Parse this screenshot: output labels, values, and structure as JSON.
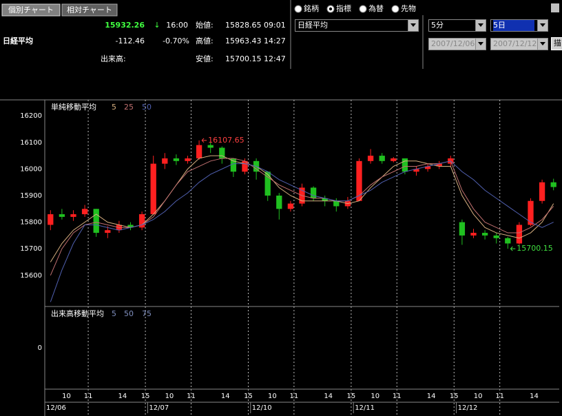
{
  "toolbar": {
    "tabs": [
      "個別チャート",
      "相対チャート"
    ],
    "radio_options": [
      "銘柄",
      "指標",
      "為替",
      "先物"
    ],
    "selected_index": 1
  },
  "quote": {
    "name": "日経平均",
    "price": "15932.26",
    "arrow": "↓",
    "time": "16:00",
    "change": "-112.46",
    "change_pct": "-0.70%",
    "volume_label": "出来高:",
    "rows": [
      {
        "label": "始値:",
        "value": "15828.65",
        "time": "09:01"
      },
      {
        "label": "高値:",
        "value": "15963.43",
        "time": "14:27"
      },
      {
        "label": "安値:",
        "value": "15700.15",
        "time": "12:47"
      }
    ]
  },
  "controls": {
    "index_select": "日経平均",
    "interval": "5分",
    "period": "5日",
    "from_date": "2007/12/06",
    "to_date": "2007/12/12",
    "draw_button": "描"
  },
  "chart_data": [
    {
      "type": "candlestick",
      "title": "単純移動平均",
      "up_color": "#ff2020",
      "down_color": "#20c020",
      "xlim": [
        0,
        45
      ],
      "xticks": [
        {
          "value": 1.9,
          "label": "10"
        },
        {
          "value": 3.8,
          "label": "11",
          "grid": true
        },
        {
          "value": 6.8,
          "label": "14"
        },
        {
          "value": 8.8,
          "label": "15",
          "grid": true
        },
        {
          "value": 10.9,
          "label": "10"
        },
        {
          "value": 12.8,
          "label": "11",
          "grid": true
        },
        {
          "value": 15.8,
          "label": "14"
        },
        {
          "value": 17.8,
          "label": "15",
          "grid": true
        },
        {
          "value": 19.9,
          "label": "10"
        },
        {
          "value": 21.8,
          "label": "11",
          "grid": true
        },
        {
          "value": 24.8,
          "label": "14"
        },
        {
          "value": 26.8,
          "label": "15",
          "grid": true
        },
        {
          "value": 28.9,
          "label": "10"
        },
        {
          "value": 30.8,
          "label": "11",
          "grid": true
        },
        {
          "value": 33.8,
          "label": "14"
        },
        {
          "value": 35.8,
          "label": "15",
          "grid": true
        },
        {
          "value": 37.9,
          "label": "10"
        },
        {
          "value": 39.8,
          "label": "11",
          "grid": true
        },
        {
          "value": 42.8,
          "label": "14"
        }
      ],
      "date_ticks": [
        {
          "value": 0,
          "label": "12/06"
        },
        {
          "value": 9,
          "label": "12/07"
        },
        {
          "value": 18,
          "label": "12/10"
        },
        {
          "value": 27,
          "label": "12/11"
        },
        {
          "value": 36,
          "label": "12/12"
        }
      ],
      "ylim": [
        15483,
        16260
      ],
      "yticks": [
        15600,
        15700,
        15800,
        15900,
        16000,
        16100,
        16200
      ],
      "open": [
        15790,
        15830,
        15820,
        15830,
        15850,
        15760,
        15770,
        15790,
        15780,
        15830,
        16020,
        16040,
        16030,
        16040,
        16090,
        16080,
        16040,
        15990,
        16030,
        15990,
        15900,
        15850,
        15870,
        15930,
        15890,
        15880,
        15860,
        15880,
        16030,
        16050,
        16030,
        16040,
        15990,
        16000,
        16010,
        16020,
        15800,
        15750,
        15760,
        15750,
        15740,
        15720,
        15790,
        15880,
        15950
      ],
      "high": [
        15845,
        15850,
        15845,
        15865,
        15850,
        15785,
        15805,
        15800,
        15840,
        16050,
        16060,
        16055,
        16050,
        16107.65,
        16100,
        16085,
        16040,
        16040,
        16040,
        15990,
        15910,
        15880,
        15945,
        15935,
        15900,
        15890,
        15895,
        16040,
        16075,
        16060,
        16045,
        16040,
        16010,
        16020,
        16030,
        16050,
        15810,
        15775,
        15770,
        15760,
        15745,
        15800,
        15890,
        15960,
        15963.43
      ],
      "low": [
        15770,
        15810,
        15805,
        15820,
        15745,
        15740,
        15760,
        15770,
        15770,
        15830,
        16000,
        16015,
        16020,
        16035,
        16060,
        16020,
        15970,
        15980,
        15960,
        15880,
        15810,
        15840,
        15860,
        15880,
        15860,
        15840,
        15850,
        15880,
        16020,
        16020,
        16025,
        15980,
        15975,
        15990,
        16000,
        16010,
        15715,
        15740,
        15735,
        15720,
        15700.15,
        15715,
        15785,
        15870,
        15920
      ],
      "close": [
        15830,
        15820,
        15830,
        15850,
        15760,
        15770,
        15790,
        15780,
        15830,
        16020,
        16040,
        16030,
        16040,
        16090,
        16080,
        16040,
        15990,
        16030,
        15990,
        15900,
        15850,
        15870,
        15930,
        15890,
        15880,
        15860,
        15880,
        16030,
        16050,
        16030,
        16040,
        15990,
        16000,
        16010,
        16020,
        16040,
        15750,
        15760,
        15750,
        15740,
        15720,
        15790,
        15880,
        15950,
        15932.26
      ],
      "series": [
        {
          "name": "5",
          "color": "#d8b080",
          "values": [
            15650,
            15720,
            15770,
            15800,
            15830,
            15800,
            15790,
            15780,
            15790,
            15830,
            15880,
            15940,
            16000,
            16040,
            16050,
            16050,
            16030,
            16020,
            16010,
            15980,
            15930,
            15900,
            15880,
            15880,
            15880,
            15880,
            15870,
            15880,
            15930,
            15970,
            16010,
            16030,
            16030,
            16020,
            16010,
            16010,
            15900,
            15830,
            15780,
            15760,
            15750,
            15740,
            15760,
            15800,
            15870
          ]
        },
        {
          "name": "25",
          "color": "#c07070",
          "values": [
            15600,
            15700,
            15760,
            15790,
            15800,
            15790,
            15780,
            15780,
            15790,
            15820,
            15880,
            15940,
            15990,
            16010,
            16030,
            16040,
            16040,
            16030,
            16000,
            15970,
            15940,
            15920,
            15900,
            15890,
            15890,
            15880,
            15880,
            15900,
            15940,
            15970,
            15990,
            16010,
            16010,
            16020,
            16020,
            16030,
            15920,
            15850,
            15800,
            15780,
            15760,
            15760,
            15780,
            15810,
            15860
          ]
        },
        {
          "name": "50",
          "color": "#5060b0",
          "values": [
            15500,
            15620,
            15720,
            15790,
            15790,
            15780,
            15770,
            15780,
            15790,
            15810,
            15840,
            15880,
            15910,
            15950,
            15980,
            16000,
            16020,
            16020,
            16010,
            15990,
            15960,
            15940,
            15920,
            15900,
            15890,
            15880,
            15880,
            15900,
            15920,
            15950,
            15970,
            15990,
            16000,
            16010,
            16020,
            16030,
            15990,
            15960,
            15920,
            15890,
            15860,
            15830,
            15800,
            15780,
            15800
          ]
        }
      ],
      "annotations": [
        {
          "x": 13,
          "value": 16107.65,
          "color": "#ff4040"
        },
        {
          "x": 40,
          "value": 15700.15,
          "color": "#40e040"
        }
      ]
    },
    {
      "type": "volume",
      "title": "出来高移動平均",
      "ylim": [
        -1,
        1
      ],
      "yticks": [
        0
      ],
      "series": [
        {
          "name": "5",
          "color": "#8090c0"
        },
        {
          "name": "50",
          "color": "#8090c0"
        },
        {
          "name": "75",
          "color": "#8090c0"
        }
      ]
    }
  ]
}
